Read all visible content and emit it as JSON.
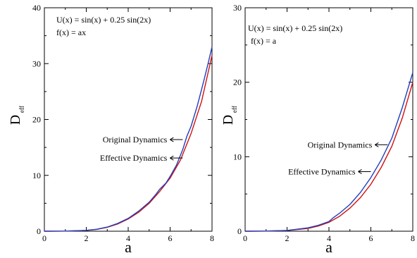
{
  "chart_data": [
    {
      "type": "line",
      "title": "",
      "xlabel": "a",
      "ylabel_main": "D",
      "ylabel_sub": "eff",
      "xlim": [
        0,
        8
      ],
      "ylim": [
        0,
        40
      ],
      "xticks": [
        "0",
        "2",
        "4",
        "6",
        "8"
      ],
      "yticks": [
        "0",
        "10",
        "20",
        "30",
        "40"
      ],
      "annotations": [
        "U(x) = sin(x) + 0.25 sin(2x)",
        "f(x) = ax"
      ],
      "series": [
        {
          "name": "Original Dynamics",
          "color": "#1f3fbf",
          "points": [
            [
              0,
              0
            ],
            [
              1,
              0.02
            ],
            [
              2,
              0.15
            ],
            [
              2.5,
              0.35
            ],
            [
              3,
              0.75
            ],
            [
              3.5,
              1.4
            ],
            [
              4,
              2.3
            ],
            [
              4.5,
              3.6
            ],
            [
              5,
              5.2
            ],
            [
              5.3,
              6.5
            ],
            [
              5.5,
              7.5
            ],
            [
              5.8,
              8.6
            ],
            [
              6,
              9.8
            ],
            [
              6.3,
              11.8
            ],
            [
              6.6,
              14.6
            ],
            [
              6.8,
              17.0
            ],
            [
              7,
              18.8
            ],
            [
              7.3,
              22.5
            ],
            [
              7.6,
              26.8
            ],
            [
              7.8,
              29.8
            ],
            [
              8,
              33.0
            ]
          ]
        },
        {
          "name": "Effective Dynamics",
          "color": "#d01010",
          "points": [
            [
              0,
              0
            ],
            [
              1,
              0.02
            ],
            [
              2,
              0.14
            ],
            [
              2.5,
              0.33
            ],
            [
              3,
              0.7
            ],
            [
              3.5,
              1.3
            ],
            [
              4,
              2.2
            ],
            [
              4.5,
              3.4
            ],
            [
              5,
              5.0
            ],
            [
              5.5,
              7.1
            ],
            [
              6,
              9.5
            ],
            [
              6.5,
              12.8
            ],
            [
              7,
              17.5
            ],
            [
              7.5,
              23.2
            ],
            [
              8,
              31.5
            ]
          ]
        }
      ],
      "legend_labels": [
        {
          "text": "Original Dynamics",
          "series": "Original Dynamics",
          "x": 6.6,
          "y": 16.4
        },
        {
          "text": "Effective Dynamics",
          "series": "Effective Dynamics",
          "x": 6.6,
          "y": 13.1
        }
      ],
      "grid": false
    },
    {
      "type": "line",
      "title": "",
      "xlabel": "a",
      "ylabel_main": "D",
      "ylabel_sub": "eff",
      "xlim": [
        0,
        8
      ],
      "ylim": [
        0,
        30
      ],
      "xticks": [
        "0",
        "2",
        "4",
        "6",
        "8"
      ],
      "yticks": [
        "0",
        "10",
        "20",
        "30"
      ],
      "annotations": [
        "U(x) = sin(x) + 0.25 sin(2x)",
        "f(x) = a"
      ],
      "series": [
        {
          "name": "Original Dynamics",
          "color": "#1f3fbf",
          "points": [
            [
              0,
              0
            ],
            [
              1,
              0.02
            ],
            [
              2,
              0.1
            ],
            [
              3,
              0.45
            ],
            [
              3.5,
              0.8
            ],
            [
              4,
              1.3
            ],
            [
              4.2,
              1.8
            ],
            [
              4.5,
              2.4
            ],
            [
              5,
              3.6
            ],
            [
              5.5,
              5.2
            ],
            [
              6,
              7.2
            ],
            [
              6.5,
              9.6
            ],
            [
              7,
              12.5
            ],
            [
              7.5,
              16.6
            ],
            [
              8,
              21.3
            ]
          ]
        },
        {
          "name": "Effective Dynamics",
          "color": "#d01010",
          "points": [
            [
              0,
              0
            ],
            [
              1,
              0.02
            ],
            [
              2,
              0.09
            ],
            [
              3,
              0.38
            ],
            [
              3.5,
              0.7
            ],
            [
              4,
              1.2
            ],
            [
              4.5,
              2.0
            ],
            [
              5,
              3.1
            ],
            [
              5.5,
              4.5
            ],
            [
              6,
              6.3
            ],
            [
              6.5,
              8.6
            ],
            [
              7,
              11.4
            ],
            [
              7.5,
              15.2
            ],
            [
              8,
              20.0
            ]
          ]
        }
      ],
      "legend_labels": [
        {
          "text": "Original Dynamics",
          "series": "Original Dynamics",
          "x": 6.8,
          "y": 11.6
        },
        {
          "text": "Effective Dynamics",
          "series": "Effective Dynamics",
          "x": 6.0,
          "y": 8.0
        }
      ],
      "grid": false
    }
  ]
}
